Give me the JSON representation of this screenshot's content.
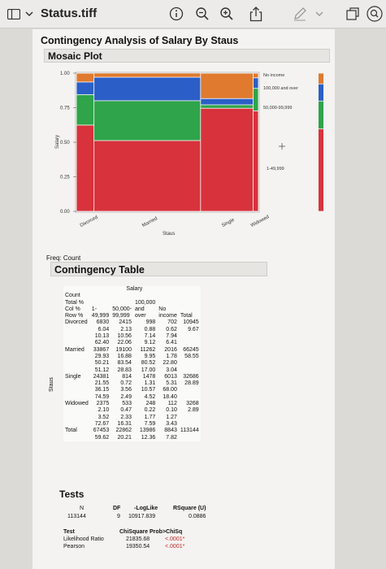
{
  "window": {
    "file_title": "Status.tiff"
  },
  "report": {
    "title": "Contingency Analysis of Salary By Staus",
    "mosaic_heading": "Mosaic Plot",
    "freq_label": "Freq: Count",
    "contingency_heading": "Contingency Table",
    "tests_heading": "Tests"
  },
  "chart_data": {
    "type": "mosaic",
    "ylabel": "Salary",
    "xlabel": "Staus",
    "yticks": [
      "0.00",
      "0.25",
      "0.50",
      "0.75",
      "1.00"
    ],
    "categories": [
      "Divorced",
      "Married",
      "Single",
      "Widowed"
    ],
    "column_widths": [
      0.0967,
      0.5855,
      0.2889,
      0.0289
    ],
    "series": [
      {
        "name": "1-49,999",
        "color": "#d8323c",
        "values": [
          0.624,
          0.5121,
          0.7459,
          0.7267
        ]
      },
      {
        "name": "50,000-99,999",
        "color": "#2fa44a",
        "values": [
          0.2206,
          0.2883,
          0.0249,
          0.1631
        ]
      },
      {
        "name": "100,000 and over",
        "color": "#2b5fc7",
        "values": [
          0.0912,
          0.17,
          0.0452,
          0.0759
        ]
      },
      {
        "name": "No income",
        "color": "#e07a2e",
        "values": [
          0.0641,
          0.0304,
          0.184,
          0.0343
        ]
      }
    ],
    "legend_labels": [
      "No income",
      "100,000 and over",
      "50,000-99,999",
      "1-49,999"
    ],
    "overall_column": [
      0.5962,
      0.2021,
      0.1236,
      0.0782
    ]
  },
  "table": {
    "salary_header": "Salary",
    "stub_lines": [
      "Count",
      "Total %",
      "Col %",
      "Row %"
    ],
    "col_headers": [
      [
        "1-",
        "49,999"
      ],
      [
        "50,000-",
        "99,999"
      ],
      [
        "100,000",
        "and",
        "over"
      ],
      [
        "No",
        "income"
      ],
      [
        "Total"
      ]
    ],
    "side_label": "Staus",
    "rows": [
      {
        "label": "Divorced",
        "cells": [
          [
            "6830",
            "6.04",
            "10.13",
            "62.40"
          ],
          [
            "2415",
            "2.13",
            "10.56",
            "22.06"
          ],
          [
            "998",
            "0.88",
            "7.14",
            "9.12"
          ],
          [
            "702",
            "0.62",
            "7.94",
            "6.41"
          ]
        ],
        "total": [
          "10945",
          "9.67"
        ]
      },
      {
        "label": "Married",
        "cells": [
          [
            "33867",
            "29.93",
            "50.21",
            "51.12"
          ],
          [
            "19100",
            "16.88",
            "83.54",
            "28.83"
          ],
          [
            "11262",
            "9.95",
            "80.52",
            "17.00"
          ],
          [
            "2016",
            "1.78",
            "22.80",
            "3.04"
          ]
        ],
        "total": [
          "66245",
          "58.55"
        ]
      },
      {
        "label": "Single",
        "cells": [
          [
            "24381",
            "21.55",
            "36.15",
            "74.59"
          ],
          [
            "814",
            "0.72",
            "3.56",
            "2.49"
          ],
          [
            "1478",
            "1.31",
            "10.57",
            "4.52"
          ],
          [
            "6013",
            "5.31",
            "68.00",
            "18.40"
          ]
        ],
        "total": [
          "32686",
          "28.89"
        ]
      },
      {
        "label": "Widowed",
        "cells": [
          [
            "2375",
            "2.10",
            "3.52",
            "72.67"
          ],
          [
            "533",
            "0.47",
            "2.33",
            "16.31"
          ],
          [
            "248",
            "0.22",
            "1.77",
            "7.59"
          ],
          [
            "112",
            "0.10",
            "1.27",
            "3.43"
          ]
        ],
        "total": [
          "3268",
          "2.89"
        ]
      }
    ],
    "total_row": {
      "label": "Total",
      "cells": [
        [
          "67453",
          "59.62"
        ],
        [
          "22862",
          "20.21"
        ],
        [
          "13986",
          "12.36"
        ],
        [
          "8843",
          "7.82"
        ]
      ],
      "grand": "113144"
    }
  },
  "tests": {
    "h_n": "N",
    "h_df": "DF",
    "h_loglike": "-LogLike",
    "h_rsquare": "RSquare (U)",
    "n": "113144",
    "df": "9",
    "loglike": "10917.839",
    "rsquare": "0.0886",
    "h_test": "Test",
    "h_chisq": "ChiSquare",
    "h_prob": "Prob>ChiSq",
    "lr_label": "Likelihood Ratio",
    "lr_chisq": "21835.68",
    "lr_prob": "<.0001*",
    "pearson_label": "Pearson",
    "pearson_chisq": "19350.54",
    "pearson_prob": "<.0001*"
  }
}
